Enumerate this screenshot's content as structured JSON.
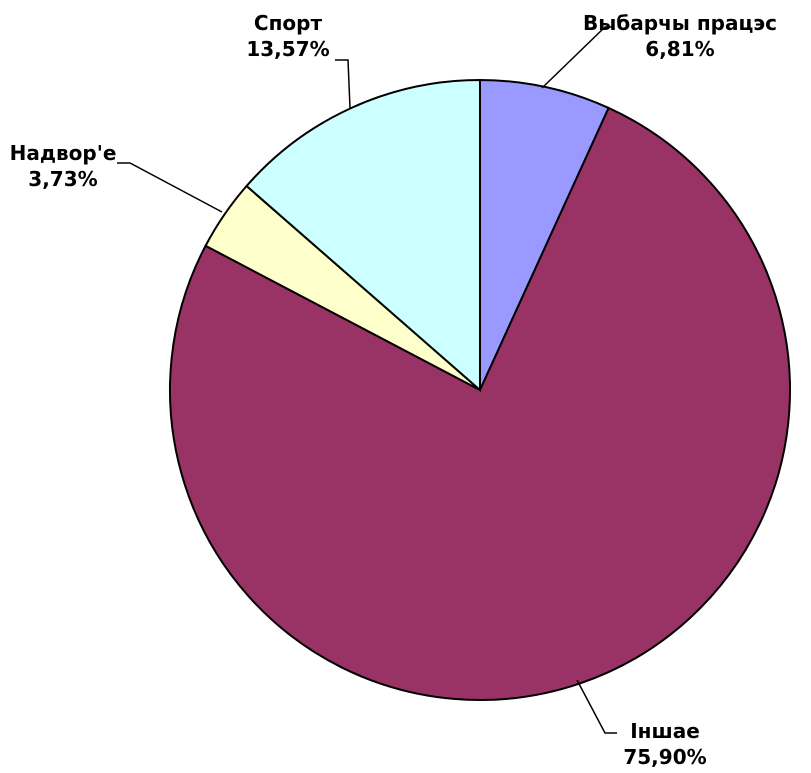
{
  "chart_data": {
    "type": "pie",
    "title": "",
    "categories": [
      "Выбарчы працэс",
      "Іншае",
      "Надвор'е",
      "Спорт"
    ],
    "values": [
      6.81,
      75.9,
      3.73,
      13.57
    ],
    "value_labels": [
      "6,81%",
      "75,90%",
      "3,73%",
      "13,57%"
    ],
    "colors": [
      "#9999FF",
      "#993366",
      "#FFFFCC",
      "#CCFFFF"
    ],
    "start_angle_deg": 0,
    "direction": "clockwise",
    "legend": "none",
    "slice_outline_color": "#000000"
  }
}
